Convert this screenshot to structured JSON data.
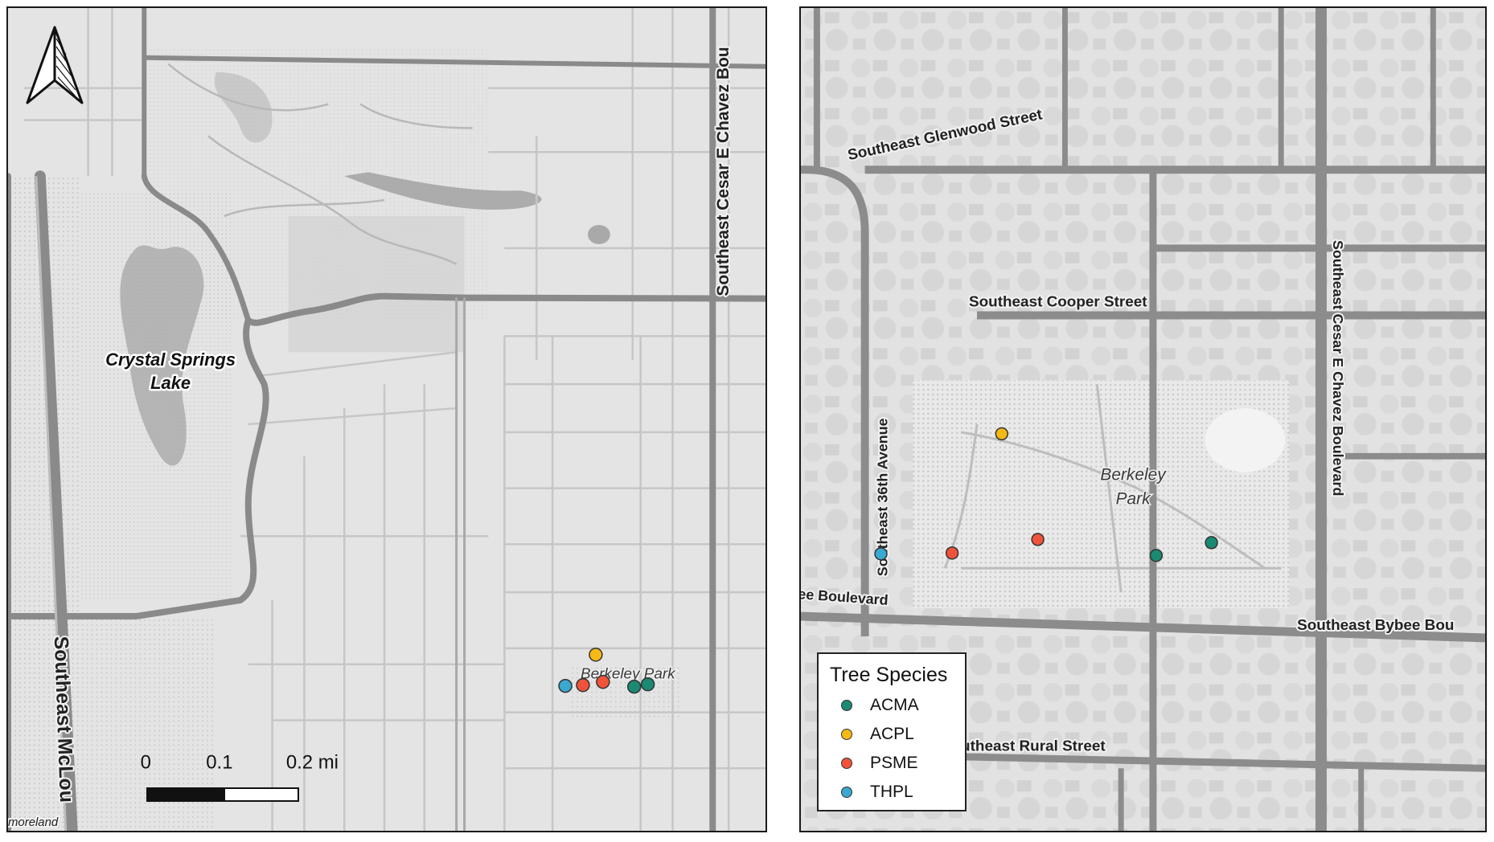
{
  "left_map": {
    "labels": {
      "lake": [
        "Crystal Springs",
        "Lake"
      ],
      "road_cesar_chavez": "Southeast Cesar E Chavez Bou",
      "road_mcloughlin": "Southeast McLou",
      "park": "Berkeley Park",
      "moreland": "moreland"
    },
    "scale_bar": {
      "ticks": [
        "0",
        "0.1",
        "0.2 mi"
      ]
    },
    "north_arrow": "north-arrow-icon"
  },
  "right_map": {
    "labels": {
      "glenwood": "Southeast Glenwood Street",
      "cooper": "Southeast Cooper Street",
      "chavez": "Southeast Cesar E Chavez Boulevard",
      "ave36": "Southeast 36th Avenue",
      "bybee_left": "ee Boulevard",
      "bybee_right": "Southeast Bybee Bou",
      "rural": "utheast Rural Street",
      "park": [
        "Berkeley",
        "Park"
      ]
    }
  },
  "legend": {
    "title": "Tree Species",
    "items": [
      {
        "label": "ACMA",
        "color": "#1a8a72"
      },
      {
        "label": "ACPL",
        "color": "#f5b915"
      },
      {
        "label": "PSME",
        "color": "#f0533a"
      },
      {
        "label": "THPL",
        "color": "#3aa8d0"
      }
    ]
  },
  "tree_points": [
    {
      "species": "THPL",
      "color": "#3aa8d0"
    },
    {
      "species": "PSME",
      "color": "#f0533a"
    },
    {
      "species": "PSME",
      "color": "#f0533a"
    },
    {
      "species": "ACPL",
      "color": "#f5b915"
    },
    {
      "species": "ACMA",
      "color": "#1a8a72"
    },
    {
      "species": "ACMA",
      "color": "#1a8a72"
    }
  ]
}
